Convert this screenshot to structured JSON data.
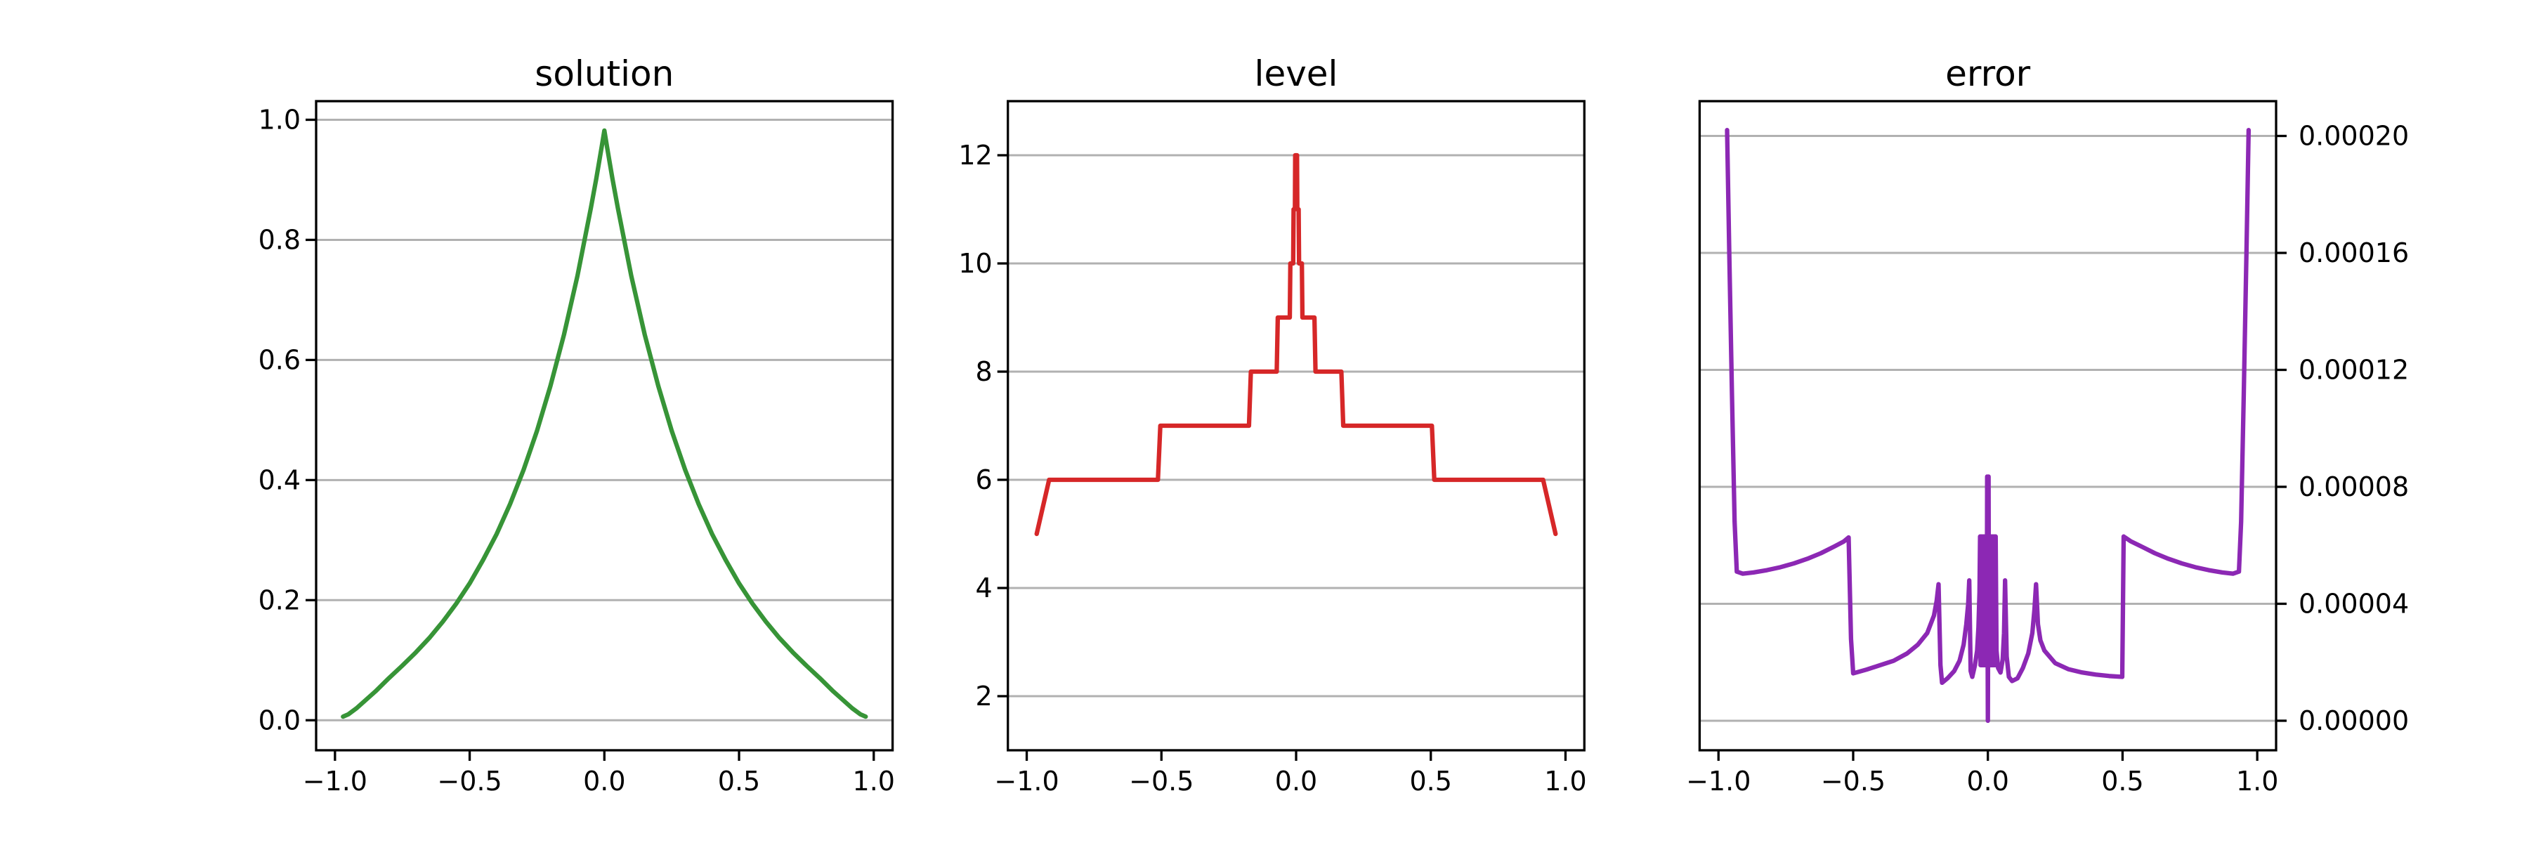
{
  "figure": {
    "background": "#ffffff",
    "grid_color": "#b1b1b1",
    "spine_color": "#000000",
    "tick_color": "#000000"
  },
  "chart_data": [
    {
      "type": "line",
      "title": "solution",
      "xlabel": "",
      "ylabel": "",
      "grid": "horizontal",
      "legend": "none",
      "xlim": [
        -1.07,
        1.07
      ],
      "ylim": [
        -0.05,
        1.031
      ],
      "xticks": [
        -1.0,
        -0.5,
        0.0,
        0.5,
        1.0
      ],
      "xtick_labels": [
        "−1.0",
        "−0.5",
        "0.0",
        "0.5",
        "1.0"
      ],
      "yticks": [
        0.0,
        0.2,
        0.4,
        0.6,
        0.8,
        1.0
      ],
      "ytick_labels": [
        "0.0",
        "0.2",
        "0.4",
        "0.6",
        "0.8",
        "1.0"
      ],
      "yticks_side": "left",
      "series": [
        {
          "name": "solution-curve",
          "color": "#379437",
          "points": [
            [
              -0.97,
              0.006
            ],
            [
              -0.95,
              0.01
            ],
            [
              -0.92,
              0.02
            ],
            [
              -0.9,
              0.028
            ],
            [
              -0.85,
              0.048
            ],
            [
              -0.8,
              0.07
            ],
            [
              -0.75,
              0.091
            ],
            [
              -0.7,
              0.113
            ],
            [
              -0.65,
              0.137
            ],
            [
              -0.6,
              0.164
            ],
            [
              -0.55,
              0.194
            ],
            [
              -0.5,
              0.228
            ],
            [
              -0.45,
              0.267
            ],
            [
              -0.4,
              0.31
            ],
            [
              -0.35,
              0.36
            ],
            [
              -0.3,
              0.417
            ],
            [
              -0.25,
              0.482
            ],
            [
              -0.2,
              0.557
            ],
            [
              -0.15,
              0.642
            ],
            [
              -0.1,
              0.74
            ],
            [
              -0.05,
              0.853
            ],
            [
              -0.03,
              0.902
            ],
            [
              -0.02,
              0.928
            ],
            [
              -0.01,
              0.955
            ],
            [
              0.0,
              0.982
            ],
            [
              0.01,
              0.955
            ],
            [
              0.02,
              0.928
            ],
            [
              0.03,
              0.902
            ],
            [
              0.05,
              0.853
            ],
            [
              0.1,
              0.74
            ],
            [
              0.15,
              0.642
            ],
            [
              0.2,
              0.557
            ],
            [
              0.25,
              0.482
            ],
            [
              0.3,
              0.417
            ],
            [
              0.35,
              0.36
            ],
            [
              0.4,
              0.31
            ],
            [
              0.45,
              0.267
            ],
            [
              0.5,
              0.228
            ],
            [
              0.55,
              0.194
            ],
            [
              0.6,
              0.164
            ],
            [
              0.65,
              0.137
            ],
            [
              0.7,
              0.113
            ],
            [
              0.75,
              0.091
            ],
            [
              0.8,
              0.07
            ],
            [
              0.85,
              0.048
            ],
            [
              0.9,
              0.028
            ],
            [
              0.92,
              0.02
            ],
            [
              0.95,
              0.01
            ],
            [
              0.97,
              0.006
            ]
          ]
        }
      ]
    },
    {
      "type": "line",
      "title": "level",
      "xlabel": "",
      "ylabel": "",
      "grid": "horizontal",
      "legend": "none",
      "xlim": [
        -1.07,
        1.07
      ],
      "ylim": [
        1.0,
        13.0
      ],
      "xticks": [
        -1.0,
        -0.5,
        0.0,
        0.5,
        1.0
      ],
      "xtick_labels": [
        "−1.0",
        "−0.5",
        "0.0",
        "0.5",
        "1.0"
      ],
      "yticks": [
        2,
        4,
        6,
        8,
        10,
        12
      ],
      "ytick_labels": [
        "2",
        "4",
        "6",
        "8",
        "10",
        "12"
      ],
      "yticks_side": "left",
      "series": [
        {
          "name": "level-staircase",
          "color": "#d62728",
          "points": [
            [
              -0.963,
              5
            ],
            [
              -0.917,
              6
            ],
            [
              -0.513,
              6
            ],
            [
              -0.504,
              7
            ],
            [
              -0.175,
              7
            ],
            [
              -0.168,
              8
            ],
            [
              -0.072,
              8
            ],
            [
              -0.068,
              9
            ],
            [
              -0.0235,
              9
            ],
            [
              -0.0215,
              10
            ],
            [
              -0.011,
              10
            ],
            [
              -0.0095,
              11
            ],
            [
              -0.0045,
              11
            ],
            [
              -0.0035,
              12
            ],
            [
              0.0035,
              12
            ],
            [
              0.0045,
              11
            ],
            [
              0.0095,
              11
            ],
            [
              0.011,
              10
            ],
            [
              0.0215,
              10
            ],
            [
              0.0235,
              9
            ],
            [
              0.068,
              9
            ],
            [
              0.072,
              8
            ],
            [
              0.168,
              8
            ],
            [
              0.175,
              7
            ],
            [
              0.504,
              7
            ],
            [
              0.513,
              6
            ],
            [
              0.917,
              6
            ],
            [
              0.963,
              5
            ]
          ]
        }
      ]
    },
    {
      "type": "line",
      "title": "error",
      "xlabel": "",
      "ylabel": "",
      "grid": "horizontal",
      "legend": "none",
      "xlim": [
        -1.07,
        1.07
      ],
      "ylim": [
        -1.01e-05,
        0.0002119
      ],
      "xticks": [
        -1.0,
        -0.5,
        0.0,
        0.5,
        1.0
      ],
      "xtick_labels": [
        "−1.0",
        "−0.5",
        "0.0",
        "0.5",
        "1.0"
      ],
      "yticks": [
        0.0,
        4e-05,
        8e-05,
        0.00012,
        0.00016,
        0.0002
      ],
      "ytick_labels": [
        "0.00000",
        "0.00004",
        "0.00008",
        "0.00012",
        "0.00016",
        "0.00020"
      ],
      "yticks_side": "right",
      "series": [
        {
          "name": "error-curve",
          "color": "#8c28b4",
          "points": [
            [
              -0.968,
              0.000202
            ],
            [
              -0.96,
              0.00016
            ],
            [
              -0.95,
              0.000112
            ],
            [
              -0.94,
              6.8e-05
            ],
            [
              -0.932,
              5.1e-05
            ],
            [
              -0.91,
              5.03e-05
            ],
            [
              -0.87,
              5.07e-05
            ],
            [
              -0.82,
              5.15e-05
            ],
            [
              -0.77,
              5.25e-05
            ],
            [
              -0.72,
              5.38e-05
            ],
            [
              -0.67,
              5.54e-05
            ],
            [
              -0.62,
              5.73e-05
            ],
            [
              -0.57,
              5.96e-05
            ],
            [
              -0.535,
              6.13e-05
            ],
            [
              -0.517,
              6.27e-05
            ],
            [
              -0.508,
              2.8e-05
            ],
            [
              -0.5,
              1.62e-05
            ],
            [
              -0.45,
              1.75e-05
            ],
            [
              -0.4,
              1.9e-05
            ],
            [
              -0.35,
              2.05e-05
            ],
            [
              -0.3,
              2.3e-05
            ],
            [
              -0.26,
              2.6e-05
            ],
            [
              -0.225,
              3e-05
            ],
            [
              -0.2,
              3.6e-05
            ],
            [
              -0.19,
              4.1e-05
            ],
            [
              -0.183,
              4.67e-05
            ],
            [
              -0.176,
              1.9e-05
            ],
            [
              -0.17,
              1.3e-05
            ],
            [
              -0.15,
              1.45e-05
            ],
            [
              -0.125,
              1.7e-05
            ],
            [
              -0.105,
              2.05e-05
            ],
            [
              -0.09,
              2.6e-05
            ],
            [
              -0.08,
              3.3e-05
            ],
            [
              -0.073,
              4e-05
            ],
            [
              -0.069,
              4.8e-05
            ],
            [
              -0.064,
              1.7e-05
            ],
            [
              -0.058,
              1.5e-05
            ],
            [
              -0.048,
              1.9e-05
            ],
            [
              -0.04,
              2.4e-05
            ],
            [
              -0.035,
              3.2e-05
            ],
            [
              -0.031,
              4.4e-05
            ],
            [
              -0.029,
              6.3e-05
            ],
            [
              -0.027,
              1.9e-05
            ],
            [
              -0.025,
              6.3e-05
            ],
            [
              -0.023,
              1.9e-05
            ],
            [
              -0.021,
              6.3e-05
            ],
            [
              -0.019,
              1.9e-05
            ],
            [
              -0.017,
              6.3e-05
            ],
            [
              -0.015,
              1.9e-05
            ],
            [
              -0.013,
              6.3e-05
            ],
            [
              -0.011,
              1.9e-05
            ],
            [
              -0.009,
              6.3e-05
            ],
            [
              -0.007,
              1.9e-05
            ],
            [
              -0.005,
              6.3e-05
            ],
            [
              -0.004,
              2.2e-05
            ],
            [
              -0.0025,
              8.35e-05
            ],
            [
              0.0,
              0.0
            ],
            [
              0.0025,
              8.35e-05
            ],
            [
              0.004,
              2.2e-05
            ],
            [
              0.005,
              6.3e-05
            ],
            [
              0.007,
              1.9e-05
            ],
            [
              0.009,
              6.3e-05
            ],
            [
              0.011,
              1.9e-05
            ],
            [
              0.013,
              6.3e-05
            ],
            [
              0.015,
              1.9e-05
            ],
            [
              0.017,
              6.3e-05
            ],
            [
              0.019,
              1.9e-05
            ],
            [
              0.021,
              6.3e-05
            ],
            [
              0.023,
              1.9e-05
            ],
            [
              0.025,
              6.3e-05
            ],
            [
              0.027,
              1.9e-05
            ],
            [
              0.029,
              6.3e-05
            ],
            [
              0.032,
              2.4e-05
            ],
            [
              0.038,
              1.8e-05
            ],
            [
              0.047,
              1.65e-05
            ],
            [
              0.055,
              2.1e-05
            ],
            [
              0.06,
              3e-05
            ],
            [
              0.064,
              4.8e-05
            ],
            [
              0.07,
              2.2e-05
            ],
            [
              0.078,
              1.5e-05
            ],
            [
              0.09,
              1.36e-05
            ],
            [
              0.11,
              1.45e-05
            ],
            [
              0.13,
              1.8e-05
            ],
            [
              0.15,
              2.3e-05
            ],
            [
              0.165,
              3e-05
            ],
            [
              0.173,
              3.8e-05
            ],
            [
              0.179,
              4.67e-05
            ],
            [
              0.186,
              3.3e-05
            ],
            [
              0.195,
              2.75e-05
            ],
            [
              0.21,
              2.4e-05
            ],
            [
              0.25,
              1.97e-05
            ],
            [
              0.3,
              1.76e-05
            ],
            [
              0.35,
              1.65e-05
            ],
            [
              0.4,
              1.58e-05
            ],
            [
              0.45,
              1.53e-05
            ],
            [
              0.499,
              1.5e-05
            ],
            [
              0.504,
              6.3e-05
            ],
            [
              0.53,
              6.14e-05
            ],
            [
              0.57,
              5.96e-05
            ],
            [
              0.62,
              5.73e-05
            ],
            [
              0.67,
              5.54e-05
            ],
            [
              0.72,
              5.38e-05
            ],
            [
              0.77,
              5.25e-05
            ],
            [
              0.82,
              5.15e-05
            ],
            [
              0.87,
              5.07e-05
            ],
            [
              0.91,
              5.03e-05
            ],
            [
              0.932,
              5.1e-05
            ],
            [
              0.94,
              6.8e-05
            ],
            [
              0.95,
              0.000112
            ],
            [
              0.96,
              0.00016
            ],
            [
              0.968,
              0.000202
            ]
          ]
        }
      ]
    }
  ]
}
